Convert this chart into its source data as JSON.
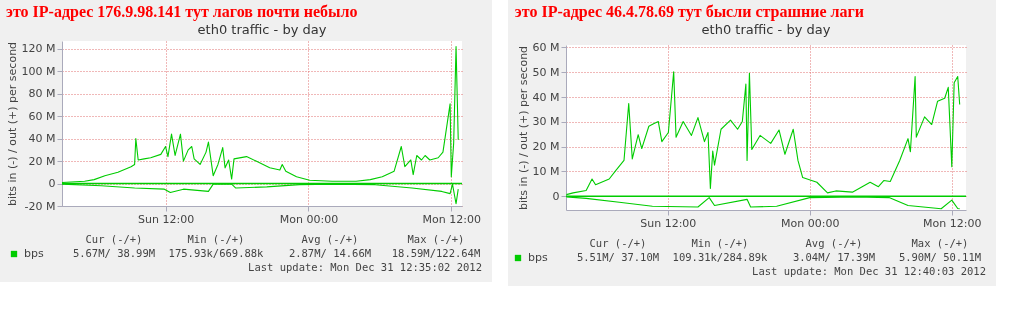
{
  "chart_data": [
    {
      "type": "line",
      "title": "это IP-адрес 176.9.98.141 тут лагов почти небыло",
      "subtitle": "eth0 traffic - by day",
      "ylabel": "bits in (-) / out (+) per second",
      "xlim": [
        "2012-12-30T03:18",
        "2012-12-31T12:54"
      ],
      "xticks": [
        {
          "value": "2012-12-30T12:00",
          "label": "Sun 12:00"
        },
        {
          "value": "2012-12-31T00:00",
          "label": "Mon 00:00"
        },
        {
          "value": "2012-12-31T12:00",
          "label": "Mon 12:00"
        }
      ],
      "ylim": [
        -20,
        127
      ],
      "yticks": [
        {
          "value": -20,
          "label": "-20 M"
        },
        0,
        {
          "value": 20,
          "label": "20 M"
        },
        {
          "value": 40,
          "label": "40 M"
        },
        {
          "value": 60,
          "label": "60 M"
        },
        {
          "value": 80,
          "label": "80 M"
        },
        {
          "value": 100,
          "label": "100 M"
        },
        {
          "value": 120,
          "label": "120 M"
        }
      ],
      "grid": true,
      "legend": "bottom left",
      "series": [
        {
          "name": "bps",
          "color": "#00cc00",
          "x": [
            "2012-12-30T03:18",
            "2012-12-30T05:12",
            "2012-12-30T06:00",
            "2012-12-30T06:54",
            "2012-12-30T08:00",
            "2012-12-30T09:06",
            "2012-12-30T09:24",
            "2012-12-30T09:30",
            "2012-12-30T09:42",
            "2012-12-30T10:12",
            "2012-12-30T10:45",
            "2012-12-30T11:36",
            "2012-12-30T12:00",
            "2012-12-30T12:12",
            "2012-12-30T12:30",
            "2012-12-30T12:48",
            "2012-12-30T13:15",
            "2012-12-30T13:30",
            "2012-12-30T13:54",
            "2012-12-30T14:12",
            "2012-12-30T14:24",
            "2012-12-30T14:54",
            "2012-12-30T15:24",
            "2012-12-30T15:36",
            "2012-12-30T16:00",
            "2012-12-30T16:24",
            "2012-12-30T16:48",
            "2012-12-30T17:00",
            "2012-12-30T17:18",
            "2012-12-30T17:33",
            "2012-12-30T17:45",
            "2012-12-30T18:48",
            "2012-12-30T19:36",
            "2012-12-30T20:45",
            "2012-12-30T21:36",
            "2012-12-30T21:48",
            "2012-12-30T22:06",
            "2012-12-30T23:00",
            "2012-12-31T00:06",
            "2012-12-31T02:00",
            "2012-12-31T04:00",
            "2012-12-31T05:12",
            "2012-12-31T06:12",
            "2012-12-31T07:12",
            "2012-12-31T07:48",
            "2012-12-31T08:06",
            "2012-12-31T08:36",
            "2012-12-31T08:48",
            "2012-12-31T09:06",
            "2012-12-31T09:30",
            "2012-12-31T09:48",
            "2012-12-31T10:12",
            "2012-12-31T10:54",
            "2012-12-31T11:18",
            "2012-12-31T11:54",
            "2012-12-31T12:00",
            "2012-12-31T12:12",
            "2012-12-31T12:24",
            "2012-12-31T12:35"
          ],
          "values": [
            1,
            2,
            3.5,
            7,
            10,
            15,
            17,
            40,
            21,
            22,
            23,
            26,
            33,
            24,
            44,
            25,
            44,
            20,
            30,
            33,
            22,
            17,
            28,
            37,
            7,
            17,
            32,
            14,
            21,
            4,
            22,
            24,
            20,
            14,
            12,
            17,
            11,
            6,
            3,
            2,
            2,
            3.5,
            6,
            11,
            33,
            15,
            21,
            8,
            25,
            21,
            25,
            21,
            23,
            28,
            71,
            6,
            36,
            122,
            39
          ]
        },
        {
          "color": "#00cc00",
          "x": [
            "2012-12-30T03:18",
            "2012-12-30T06:36",
            "2012-12-30T09:24",
            "2012-12-30T11:54",
            "2012-12-30T12:24",
            "2012-12-30T13:30",
            "2012-12-30T15:36",
            "2012-12-30T16:00",
            "2012-12-30T17:33",
            "2012-12-30T17:54",
            "2012-12-30T20:30",
            "2012-12-30T23:15",
            "2012-12-31T02:00",
            "2012-12-31T05:36",
            "2012-12-31T08:42",
            "2012-12-31T11:12",
            "2012-12-31T11:54",
            "2012-12-31T12:06",
            "2012-12-31T12:24",
            "2012-12-31T12:35"
          ],
          "values": [
            -0.5,
            -2,
            -4,
            -5,
            -8,
            -5,
            -7,
            -0.5,
            -0.5,
            -4,
            -3,
            -1,
            -0.5,
            -1,
            -4,
            -7,
            -9,
            -0.5,
            -18,
            -5
          ]
        }
      ],
      "ref_lines": [
        {
          "axis": "y",
          "value": 0,
          "color": "#00cc00"
        }
      ],
      "annotations": [
        "Cur (-/+)",
        "Min (-/+)",
        "Avg (-/+)",
        "Max (-/+)",
        "5.67M/  38.99M",
        "175.93k/669.88k",
        "2.87M/  14.66M",
        "18.59M/122.64M",
        "Last update:  Mon Dec 31 12:35:02 2012"
      ]
    },
    {
      "type": "line",
      "title": "это IP-адрес 46.4.78.69 тут бысли страшние лаги",
      "subtitle": "eth0 traffic - by day",
      "ylabel": "bits in (-) / out (+) per second",
      "xlim": [
        "2012-12-30T03:24",
        "2012-12-31T13:12"
      ],
      "xticks": [
        {
          "value": "2012-12-30T12:00",
          "label": "Sun 12:00"
        },
        {
          "value": "2012-12-31T00:00",
          "label": "Mon 00:00"
        },
        {
          "value": "2012-12-31T12:00",
          "label": "Mon 12:00"
        }
      ],
      "ylim": [
        -5.6,
        61
      ],
      "yticks": [
        0,
        {
          "value": 10,
          "label": "10 M"
        },
        {
          "value": 20,
          "label": "20 M"
        },
        {
          "value": 30,
          "label": "30 M"
        },
        {
          "value": 40,
          "label": "40 M"
        },
        {
          "value": 50,
          "label": "50 M"
        },
        {
          "value": 60,
          "label": "60 M"
        }
      ],
      "grid": true,
      "legend": "bottom left",
      "series": [
        {
          "name": "bps",
          "color": "#00cc00",
          "x": [
            "2012-12-30T03:26",
            "2012-12-30T04:00",
            "2012-12-30T05:06",
            "2012-12-30T05:36",
            "2012-12-30T05:54",
            "2012-12-30T07:03",
            "2012-12-30T07:36",
            "2012-12-30T08:18",
            "2012-12-30T08:42",
            "2012-12-30T09:00",
            "2012-12-30T09:30",
            "2012-12-30T09:48",
            "2012-12-30T10:24",
            "2012-12-30T10:48",
            "2012-12-30T11:12",
            "2012-12-30T11:30",
            "2012-12-30T12:03",
            "2012-12-30T12:30",
            "2012-12-30T12:42",
            "2012-12-30T13:18",
            "2012-12-30T14:00",
            "2012-12-30T14:33",
            "2012-12-30T15:06",
            "2012-12-30T15:24",
            "2012-12-30T15:36",
            "2012-12-30T15:48",
            "2012-12-30T15:57",
            "2012-12-30T16:30",
            "2012-12-30T17:18",
            "2012-12-30T17:54",
            "2012-12-30T18:18",
            "2012-12-30T18:36",
            "2012-12-30T18:42",
            "2012-12-30T18:54",
            "2012-12-30T19:06",
            "2012-12-30T19:48",
            "2012-12-30T20:42",
            "2012-12-30T21:24",
            "2012-12-30T21:54",
            "2012-12-30T22:36",
            "2012-12-30T23:00",
            "2012-12-30T23:24",
            "2012-12-31T00:36",
            "2012-12-31T01:30",
            "2012-12-31T02:12",
            "2012-12-31T03:36",
            "2012-12-31T05:06",
            "2012-12-31T05:48",
            "2012-12-31T06:15",
            "2012-12-31T06:48",
            "2012-12-31T07:36",
            "2012-12-31T08:18",
            "2012-12-31T08:30",
            "2012-12-31T08:54",
            "2012-12-31T09:00",
            "2012-12-31T09:42",
            "2012-12-31T10:18",
            "2012-12-31T10:48",
            "2012-12-31T11:24",
            "2012-12-31T11:42",
            "2012-12-31T12:00",
            "2012-12-31T12:12",
            "2012-12-31T12:30",
            "2012-12-31T12:40"
          ],
          "values": [
            0.6,
            1.3,
            2.3,
            6.9,
            4.6,
            6.9,
            10.3,
            14.4,
            37.4,
            15,
            24.8,
            19.2,
            28.2,
            29.2,
            30.1,
            22,
            25.7,
            50.2,
            23.8,
            30.1,
            24.5,
            31.7,
            22,
            25.7,
            3.1,
            18.2,
            12.5,
            27,
            30.7,
            27,
            30.1,
            45.2,
            14.4,
            49.6,
            18.8,
            24.5,
            21.3,
            26.7,
            16.9,
            27,
            14.4,
            7.5,
            5.6,
            1.3,
            2.1,
            1.6,
            5.6,
            3.8,
            6.3,
            5.9,
            14.4,
            23.2,
            17.9,
            48.3,
            23.8,
            32,
            28.9,
            38.3,
            39.5,
            43.9,
            11.9,
            45.8,
            48.3,
            37
          ]
        },
        {
          "color": "#00cc00",
          "x": [
            "2012-12-30T03:26",
            "2012-12-30T05:06",
            "2012-12-30T07:54",
            "2012-12-30T10:42",
            "2012-12-30T14:33",
            "2012-12-30T15:30",
            "2012-12-30T15:57",
            "2012-12-30T18:42",
            "2012-12-30T19:00",
            "2012-12-30T21:12",
            "2012-12-31T00:00",
            "2012-12-31T03:54",
            "2012-12-31T06:42",
            "2012-12-31T08:18",
            "2012-12-31T11:06",
            "2012-12-31T12:00",
            "2012-12-31T12:30",
            "2012-12-31T12:40"
          ],
          "values": [
            -0.3,
            -0.9,
            -2.5,
            -4.1,
            -4.4,
            -0.6,
            -3.8,
            -1.3,
            -4.4,
            -4.1,
            -0.6,
            -0.3,
            -0.6,
            -3.8,
            -5.1,
            -1.6,
            -5,
            -5.1
          ]
        }
      ],
      "ref_lines": [
        {
          "axis": "y",
          "value": 0,
          "color": "#00cc00"
        }
      ],
      "annotations": [
        "Cur (-/+)",
        "Min (-/+)",
        "Avg (-/+)",
        "Max (-/+)",
        "5.51M/  37.10M",
        "109.31k/284.89k",
        "3.04M/  17.39M",
        "5.90M/  50.11M",
        "Last update:  Mon Dec 31 12:40:03 2012"
      ]
    }
  ]
}
